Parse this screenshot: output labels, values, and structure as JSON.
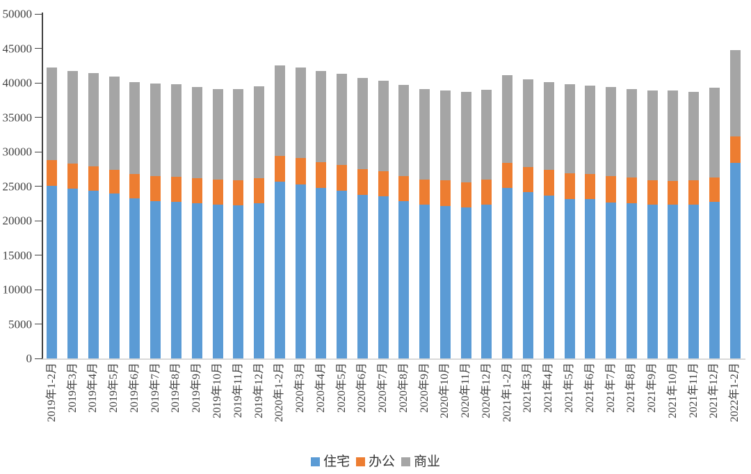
{
  "chart_data": {
    "type": "bar",
    "stacked": true,
    "title": "",
    "xlabel": "",
    "ylabel": "",
    "ylim": [
      0,
      50000
    ],
    "ytick_step": 5000,
    "grid": false,
    "legend_position": "bottom",
    "axis_color": "#404040",
    "baseline_color": "#d9d9d9",
    "categories": [
      "2019年1-2月",
      "2019年3月",
      "2019年4月",
      "2019年5月",
      "2019年6月",
      "2019年7月",
      "2019年8月",
      "2019年9月",
      "2019年10月",
      "2019年11月",
      "2019年12月",
      "2020年1-2月",
      "2020年3月",
      "2020年4月",
      "2020年5月",
      "2020年6月",
      "2020年7月",
      "2020年8月",
      "2020年9月",
      "2020年10月",
      "2020年11月",
      "2020年12月",
      "2021年1-2月",
      "2021年3月",
      "2021年4月",
      "2021年5月",
      "2021年6月",
      "2021年7月",
      "2021年8月",
      "2021年9月",
      "2021年10月",
      "2021年11月",
      "2021年12月",
      "2022年1-2月"
    ],
    "series": [
      {
        "name": "住宅",
        "color": "#5B9BD5",
        "values": [
          25100,
          24600,
          24300,
          23900,
          23200,
          22800,
          22700,
          22500,
          22300,
          22200,
          22500,
          25700,
          25300,
          24700,
          24300,
          23700,
          23500,
          22800,
          22300,
          22100,
          21900,
          22300,
          24700,
          24100,
          23600,
          23100,
          23100,
          22600,
          22500,
          22300,
          22300,
          22300,
          22700,
          28400
        ]
      },
      {
        "name": "办公",
        "color": "#ED7D31",
        "values": [
          3700,
          3700,
          3600,
          3500,
          3600,
          3700,
          3700,
          3700,
          3700,
          3700,
          3700,
          3700,
          3800,
          3800,
          3800,
          3800,
          3700,
          3700,
          3700,
          3800,
          3700,
          3700,
          3700,
          3700,
          3800,
          3800,
          3700,
          3900,
          3800,
          3600,
          3500,
          3600,
          3600,
          3800
        ]
      },
      {
        "name": "商业",
        "color": "#A5A5A5",
        "values": [
          13400,
          13400,
          13500,
          13500,
          13300,
          13400,
          13400,
          13200,
          13100,
          13200,
          13300,
          13100,
          13100,
          13200,
          13200,
          13200,
          13100,
          13200,
          13100,
          13000,
          13100,
          13000,
          12700,
          12700,
          12700,
          12900,
          12800,
          12900,
          12800,
          13000,
          13100,
          12800,
          13000,
          12500
        ]
      }
    ]
  }
}
